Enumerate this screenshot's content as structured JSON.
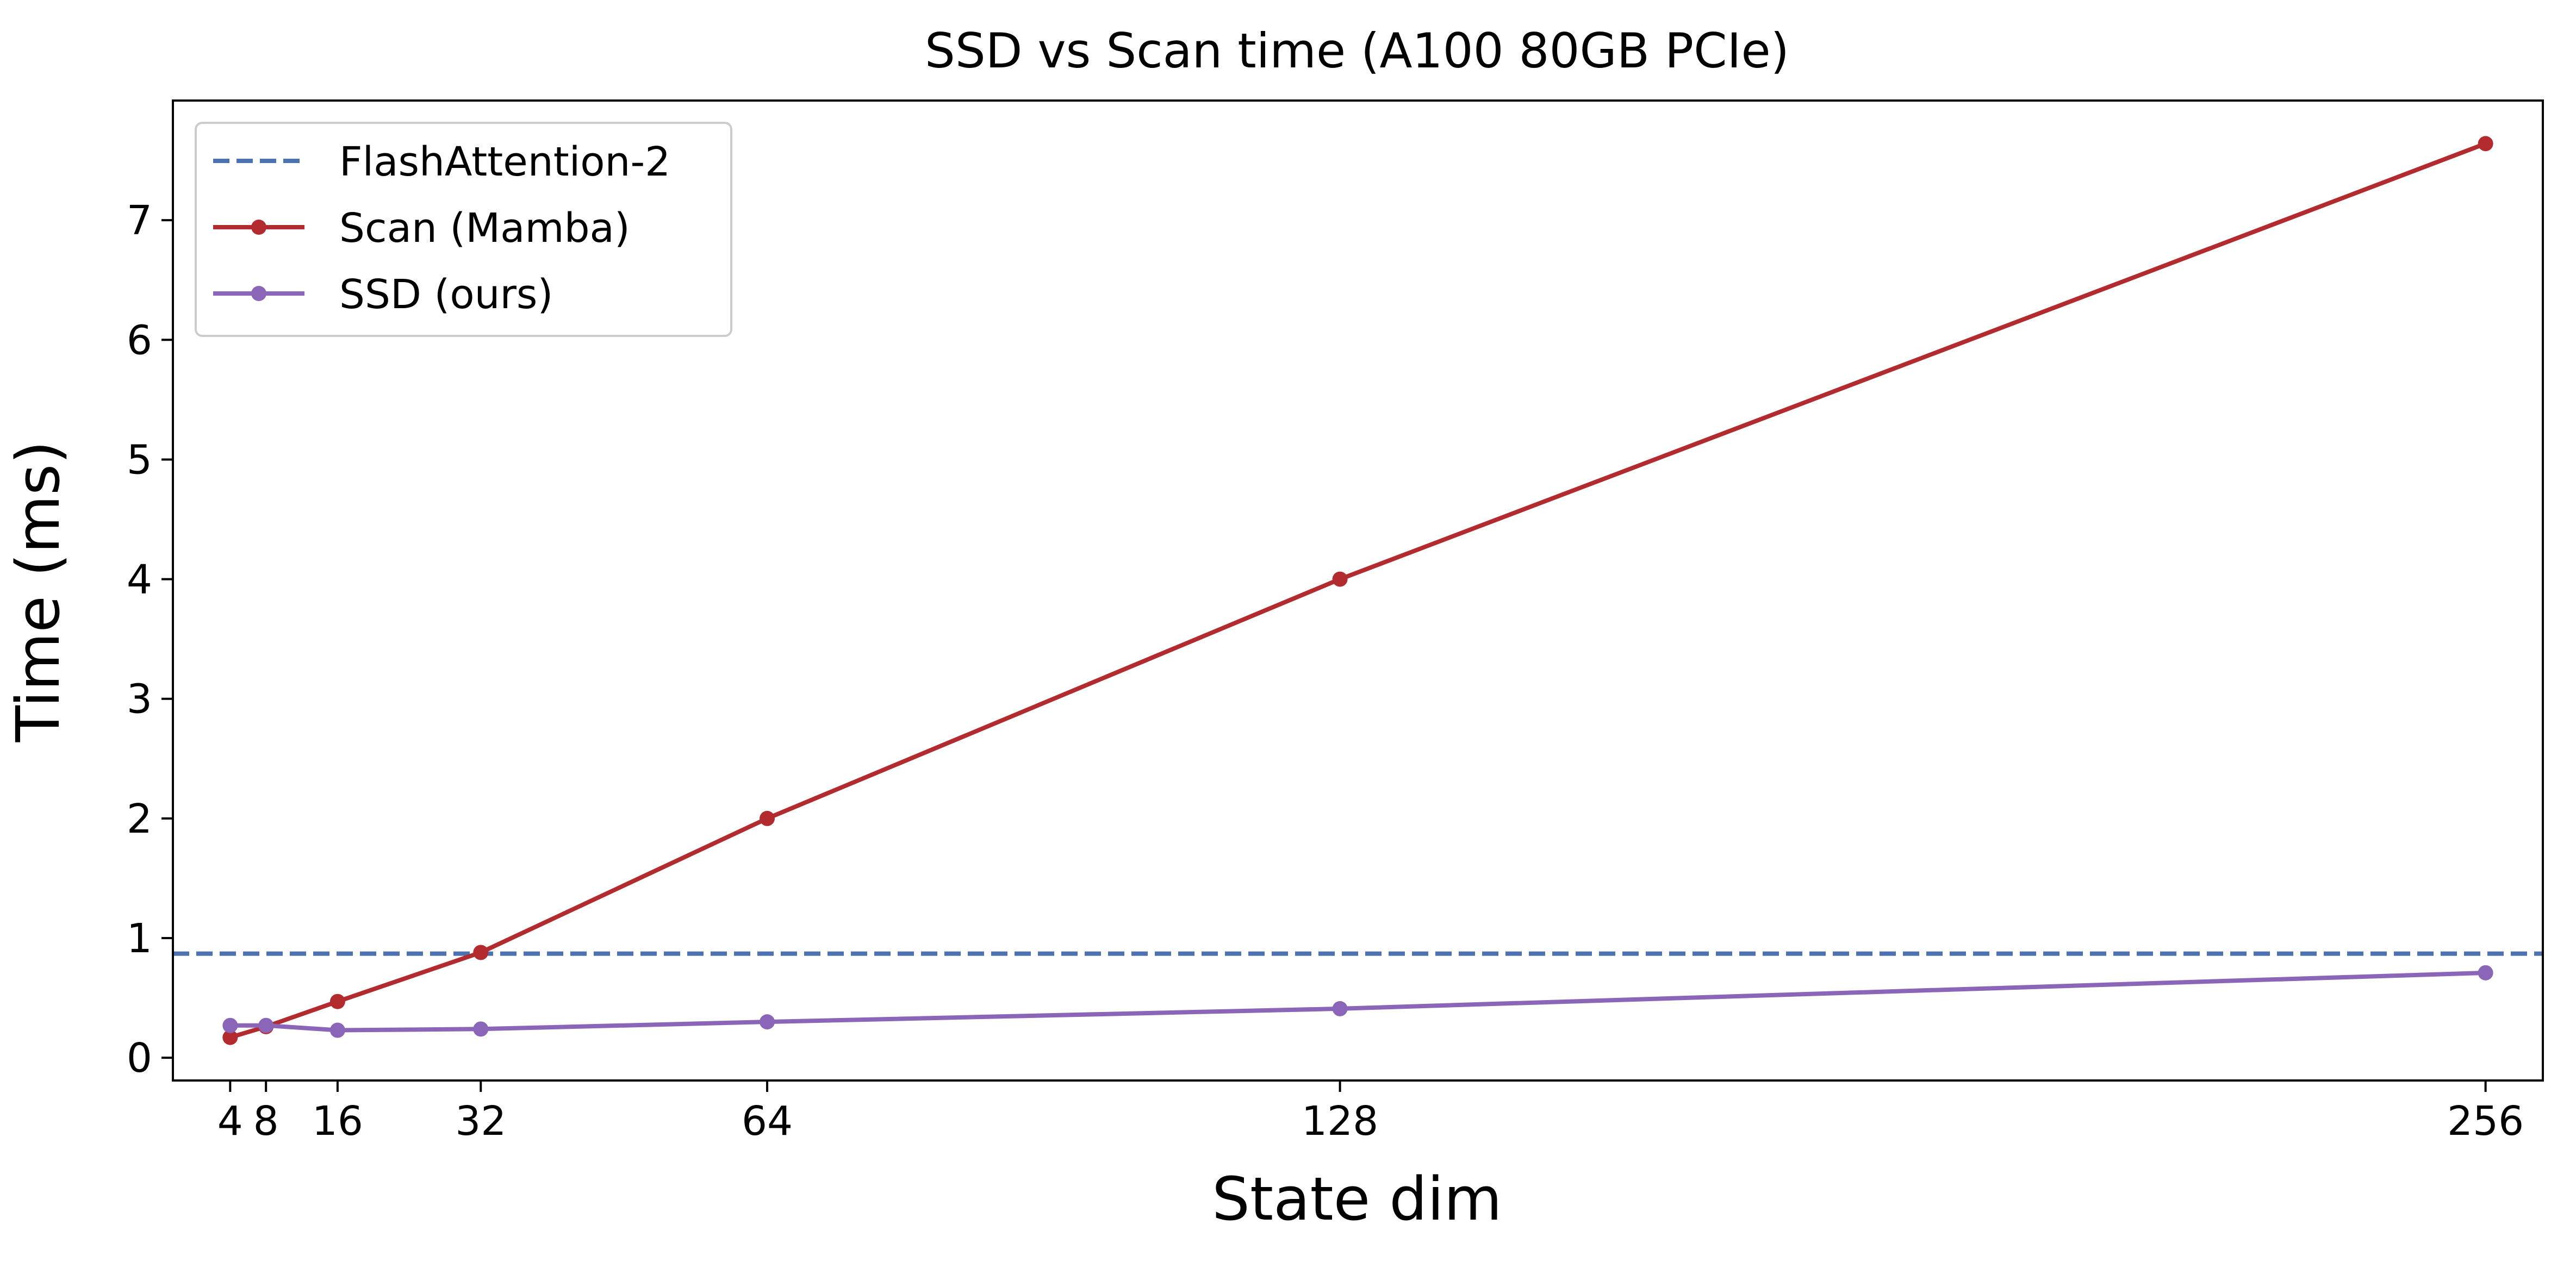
{
  "chart_data": {
    "type": "line",
    "title": "SSD vs Scan time (A100 80GB PCIe)",
    "xlabel": "State dim",
    "ylabel": "Time (ms)",
    "xlim": [
      -2.4,
      262.4
    ],
    "ylim": [
      -0.19,
      8.0
    ],
    "x_ticks": [
      4,
      8,
      16,
      32,
      64,
      128,
      256
    ],
    "x_tick_labels": [
      "4",
      "8",
      "16",
      "32",
      "64",
      "128",
      "256"
    ],
    "y_ticks": [
      0,
      1,
      2,
      3,
      4,
      5,
      6,
      7
    ],
    "y_tick_labels": [
      "0",
      "1",
      "2",
      "3",
      "4",
      "5",
      "6",
      "7"
    ],
    "grid": false,
    "legend_position": "top-left",
    "reference_lines": [
      {
        "name": "FlashAttention-2",
        "y": 0.87,
        "color": "#4c72b0",
        "style": "dashed"
      }
    ],
    "x": [
      4,
      8,
      16,
      32,
      64,
      128,
      256
    ],
    "series": [
      {
        "name": "Scan (Mamba)",
        "color": "#b22c2f",
        "values": [
          0.17,
          0.26,
          0.47,
          0.88,
          2.0,
          4.0,
          7.64
        ]
      },
      {
        "name": "SSD (ours)",
        "color": "#8b66b8",
        "values": [
          0.27,
          0.27,
          0.23,
          0.24,
          0.3,
          0.41,
          0.71
        ]
      }
    ]
  }
}
